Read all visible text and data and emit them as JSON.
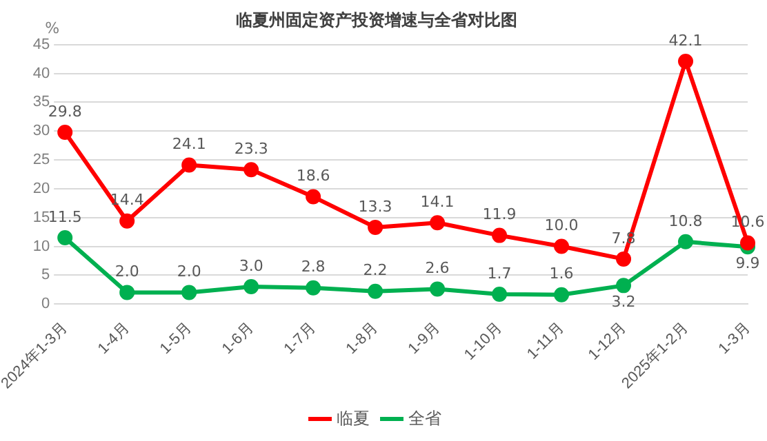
{
  "chart_data": {
    "type": "line",
    "title": "临夏州固定资产投资增速与全省对比图",
    "ylabel": "%",
    "categories": [
      "2024年1-3月",
      "1-4月",
      "1-5月",
      "1-6月",
      "1-7月",
      "1-8月",
      "1-9月",
      "1-10月",
      "1-11月",
      "1-12月",
      "2025年1-2月",
      "1-3月"
    ],
    "series": [
      {
        "name": "临夏",
        "color": "#ff0000",
        "values": [
          29.8,
          14.4,
          24.1,
          23.3,
          18.6,
          13.3,
          14.1,
          11.9,
          10.0,
          7.8,
          42.1,
          10.6
        ],
        "value_labels": [
          "29.8",
          "14.4",
          "24.1",
          "23.3",
          "18.6",
          "13.3",
          "14.1",
          "11.9",
          "10.0",
          "7.8",
          "42.1",
          "10.6"
        ]
      },
      {
        "name": "全省",
        "color": "#00b050",
        "values": [
          11.5,
          2.0,
          2.0,
          3.0,
          2.8,
          2.2,
          2.6,
          1.7,
          1.6,
          3.2,
          10.8,
          9.9
        ],
        "value_labels": [
          "11.5",
          "2.0",
          "2.0",
          "3.0",
          "2.8",
          "2.2",
          "2.6",
          "1.7",
          "1.6",
          "3.2",
          "10.8",
          "9.9"
        ]
      }
    ],
    "ylim": [
      0,
      45
    ],
    "yticks": [
      0,
      5,
      10,
      15,
      20,
      25,
      30,
      35,
      40,
      45
    ],
    "grid": "y",
    "legend": "bottom",
    "marker": "circle",
    "line_style": "solid"
  }
}
